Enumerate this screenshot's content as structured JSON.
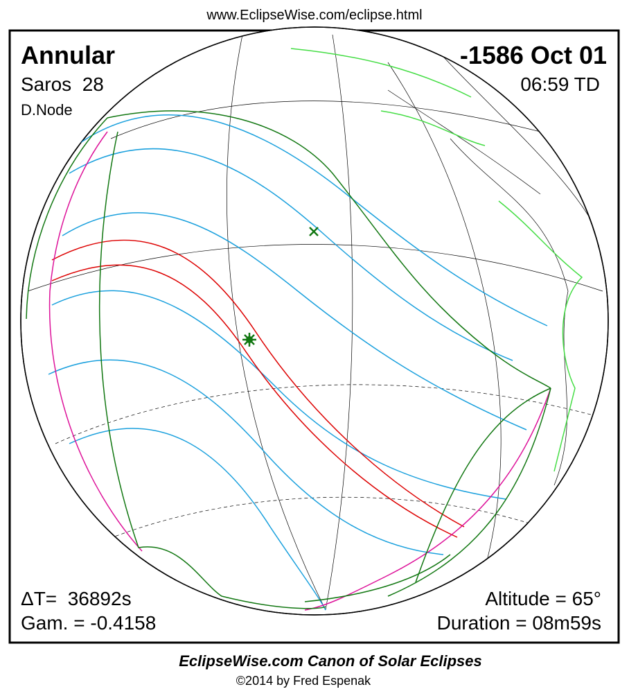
{
  "header": {
    "url": "www.EclipseWise.com/eclipse.html"
  },
  "eclipse": {
    "type": "Annular",
    "saros": "Saros  28",
    "node": "D.Node",
    "date": "-1586 Oct 01",
    "time": "06:59 TD",
    "delta_t": "ΔT=  36892s",
    "gamma": "Gam. = -0.4158",
    "altitude": "Altitude = 65°",
    "duration": "Duration = 08m59s"
  },
  "footer": {
    "title": "EclipseWise.com Canon of Solar Eclipses",
    "copyright": "©2014 by Fred Espenak"
  }
}
